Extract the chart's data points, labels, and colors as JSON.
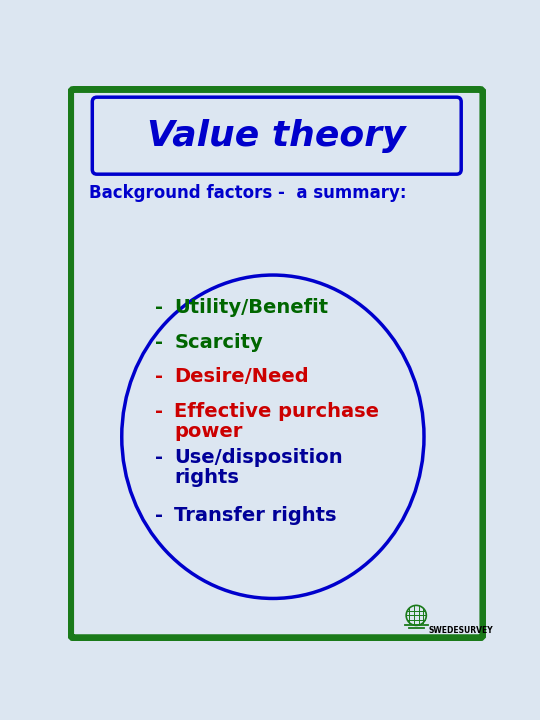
{
  "title": "Value theory",
  "subtitle": "Background factors -  a summary:",
  "background_color": "#dce6f1",
  "outer_border_color": "#1a7a1a",
  "title_box_color": "#dce6f1",
  "title_box_border": "#0000cc",
  "title_color": "#0000cc",
  "subtitle_color": "#0000cc",
  "ellipse_color": "#0000cc",
  "items": [
    {
      "text": "Utility/Benefit",
      "color": "#006600",
      "bullet": "-"
    },
    {
      "text": "Scarcity",
      "color": "#006600",
      "bullet": "-"
    },
    {
      "text": "Desire/Need",
      "color": "#cc0000",
      "bullet": "-"
    },
    {
      "text": "Effective purchase\npower",
      "color": "#cc0000",
      "bullet": "-"
    },
    {
      "text": "Use/disposition\nrights",
      "color": "#000099",
      "bullet": "-"
    },
    {
      "text": "Transfer rights",
      "color": "#000099",
      "bullet": "-"
    }
  ],
  "logo_text": "SWEDESURVEY",
  "logo_color": "#1a7a1a",
  "title_fontsize": 26,
  "subtitle_fontsize": 12,
  "item_fontsize": 14
}
